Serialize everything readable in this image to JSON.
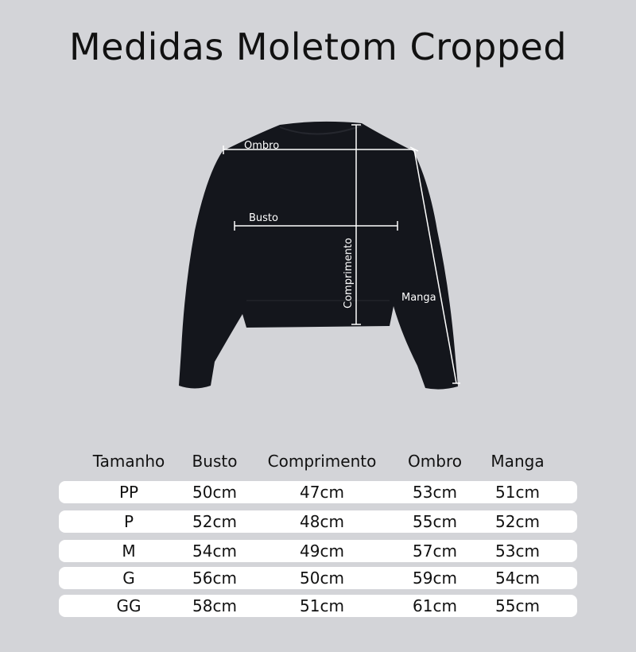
{
  "title": "Medidas Moletom Cropped",
  "diagram_labels": {
    "ombro": "Ombro",
    "busto": "Busto",
    "comprimento": "Comprimento",
    "manga": "Manga"
  },
  "colors": {
    "background": "#d3d4d8",
    "garment": "#14161c",
    "row": "#ffffff"
  },
  "table": {
    "headers": [
      "Tamanho",
      "Busto",
      "Comprimento",
      "Ombro",
      "Manga"
    ],
    "rows": [
      [
        "PP",
        "50cm",
        "47cm",
        "53cm",
        "51cm"
      ],
      [
        "P",
        "52cm",
        "48cm",
        "55cm",
        "52cm"
      ],
      [
        "M",
        "54cm",
        "49cm",
        "57cm",
        "53cm"
      ],
      [
        "G",
        "56cm",
        "50cm",
        "59cm",
        "54cm"
      ],
      [
        "GG",
        "58cm",
        "51cm",
        "61cm",
        "55cm"
      ]
    ]
  }
}
